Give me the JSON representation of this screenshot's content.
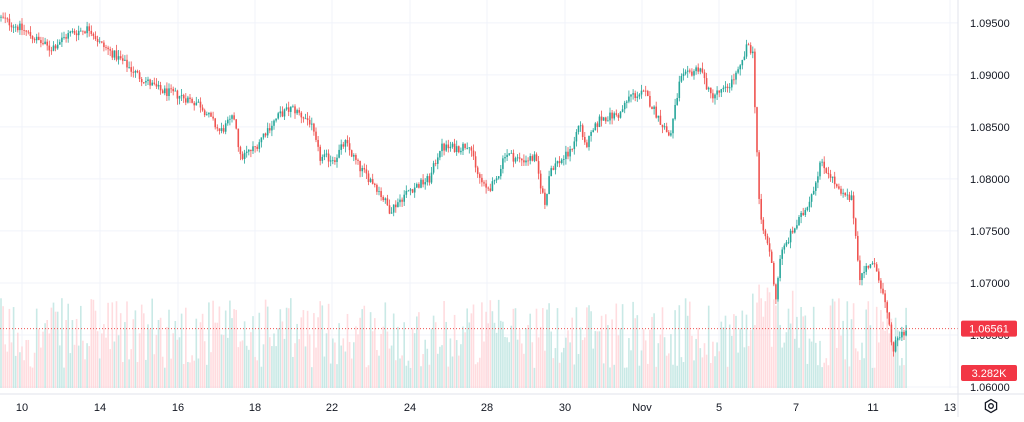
{
  "chart_data": {
    "type": "candlestick",
    "title": "",
    "colors": {
      "up": "#26a69a",
      "down": "#ef5350",
      "up_volume": "#b2dfdb",
      "down_volume": "#ffcdd2",
      "grid": "#f0f3fa",
      "axis_text": "#131722",
      "price_line": "#ef5350",
      "price_label_bg": "#f23645"
    },
    "price_axis": {
      "ylim": [
        1.0599,
        1.0972
      ],
      "ticks": [
        "1.09500",
        "1.09000",
        "1.08500",
        "1.08000",
        "1.07500",
        "1.07000",
        "1.06500",
        "1.06000"
      ]
    },
    "time_axis": {
      "ticks": [
        "10",
        "14",
        "16",
        "18",
        "22",
        "24",
        "28",
        "30",
        "Nov",
        "5",
        "7",
        "11",
        "13"
      ]
    },
    "last_price": {
      "label": "1.06561",
      "value": 1.06561
    },
    "volume_label": "3.282K",
    "close_path": [
      [
        0,
        1.0955
      ],
      [
        20,
        1.0945
      ],
      [
        50,
        1.0925
      ],
      [
        70,
        1.094
      ],
      [
        90,
        1.0945
      ],
      [
        100,
        1.093
      ],
      [
        120,
        1.0915
      ],
      [
        140,
        1.0898
      ],
      [
        160,
        1.0885
      ],
      [
        180,
        1.088
      ],
      [
        200,
        1.0872
      ],
      [
        220,
        1.0845
      ],
      [
        235,
        1.086
      ],
      [
        240,
        1.082
      ],
      [
        255,
        1.083
      ],
      [
        265,
        1.0845
      ],
      [
        280,
        1.0862
      ],
      [
        292,
        1.0868
      ],
      [
        310,
        1.0855
      ],
      [
        320,
        1.082
      ],
      [
        335,
        1.082
      ],
      [
        345,
        1.0835
      ],
      [
        360,
        1.081
      ],
      [
        375,
        1.0795
      ],
      [
        390,
        1.077
      ],
      [
        410,
        1.079
      ],
      [
        430,
        1.08
      ],
      [
        440,
        1.083
      ],
      [
        460,
        1.083
      ],
      [
        470,
        1.0835
      ],
      [
        475,
        1.081
      ],
      [
        485,
        1.079
      ],
      [
        495,
        1.0795
      ],
      [
        505,
        1.0825
      ],
      [
        520,
        1.0818
      ],
      [
        535,
        1.082
      ],
      [
        545,
        1.0775
      ],
      [
        550,
        1.081
      ],
      [
        570,
        1.0825
      ],
      [
        585,
        1.083
      ],
      [
        580,
        1.0855
      ],
      [
        600,
        1.0858
      ],
      [
        620,
        1.0862
      ],
      [
        630,
        1.088
      ],
      [
        645,
        1.0882
      ],
      [
        655,
        1.0865
      ],
      [
        670,
        1.084
      ],
      [
        680,
        1.0895
      ],
      [
        700,
        1.0908
      ],
      [
        710,
        1.088
      ],
      [
        725,
        1.0885
      ],
      [
        740,
        1.0905
      ],
      [
        748,
        1.093
      ],
      [
        753,
        1.092
      ],
      [
        755,
        1.087
      ],
      [
        760,
        1.076
      ],
      [
        770,
        1.073
      ],
      [
        776,
        1.0685
      ],
      [
        780,
        1.0725
      ],
      [
        790,
        1.0745
      ],
      [
        805,
        1.077
      ],
      [
        815,
        1.0795
      ],
      [
        820,
        1.0815
      ],
      [
        830,
        1.0805
      ],
      [
        840,
        1.0785
      ],
      [
        852,
        1.078
      ],
      [
        860,
        1.0705
      ],
      [
        870,
        1.072
      ],
      [
        878,
        1.071
      ],
      [
        885,
        1.068
      ],
      [
        893,
        1.0635
      ],
      [
        900,
        1.065
      ],
      [
        908,
        1.0656
      ]
    ]
  }
}
